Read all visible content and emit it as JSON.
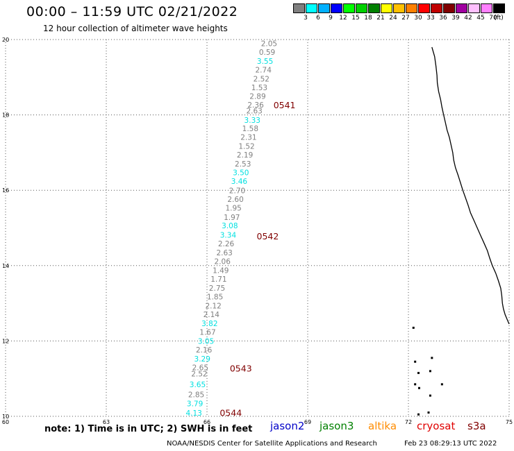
{
  "header": {
    "title": "00:00 – 11:59 UTC 02/21/2022",
    "subtitle": "12 hour collection of altimeter wave heights"
  },
  "legend": {
    "colors": [
      "#808080",
      "#00ffff",
      "#00b0ff",
      "#0000ff",
      "#00ff00",
      "#00d000",
      "#008000",
      "#ffff00",
      "#ffc000",
      "#ff8000",
      "#ff0000",
      "#c00000",
      "#800000",
      "#a000a0",
      "#ffc0ff",
      "#ff80ff",
      "#000000"
    ],
    "labels": [
      "3",
      "6",
      "9",
      "12",
      "15",
      "18",
      "21",
      "24",
      "27",
      "30",
      "33",
      "36",
      "39",
      "42",
      "45",
      "70",
      "(ft)"
    ]
  },
  "chart_data": {
    "type": "scatter",
    "title": "12 hour collection of altimeter wave heights",
    "xlabel": "",
    "ylabel": "",
    "xlim": [
      60,
      75
    ],
    "ylim": [
      10,
      20
    ],
    "x_ticks": [
      "60",
      "63",
      "66",
      "69",
      "72",
      "75"
    ],
    "y_ticks": [
      "10",
      "12",
      "14",
      "16",
      "18",
      "20"
    ],
    "grid": true,
    "series": [
      {
        "name": "jason2",
        "color": "#808080",
        "points": [
          {
            "lat": 19.9,
            "lon": 67.85,
            "swh": "2.05",
            "color": "#808080"
          },
          {
            "lat": 19.67,
            "lon": 67.79,
            "swh": "0.59",
            "color": "#808080"
          },
          {
            "lat": 19.43,
            "lon": 67.73,
            "swh": "3.55",
            "color": "#00e0e0"
          },
          {
            "lat": 19.2,
            "lon": 67.68,
            "swh": "2.74",
            "color": "#808080"
          },
          {
            "lat": 18.96,
            "lon": 67.62,
            "swh": "2.52",
            "color": "#808080"
          },
          {
            "lat": 18.73,
            "lon": 67.56,
            "swh": "1.53",
            "color": "#808080"
          },
          {
            "lat": 18.5,
            "lon": 67.51,
            "swh": "2.89",
            "color": "#808080"
          },
          {
            "lat": 18.27,
            "lon": 67.45,
            "swh": "2.36",
            "color": "#808080"
          },
          {
            "lat": 18.11,
            "lon": 67.41,
            "swh": "2.63",
            "color": "#808080"
          },
          {
            "lat": 17.86,
            "lon": 67.35,
            "swh": "3.33",
            "color": "#00e0e0"
          },
          {
            "lat": 17.64,
            "lon": 67.29,
            "swh": "1.58",
            "color": "#808080"
          },
          {
            "lat": 17.41,
            "lon": 67.24,
            "swh": "2.31",
            "color": "#808080"
          },
          {
            "lat": 17.17,
            "lon": 67.18,
            "swh": "1.52",
            "color": "#808080"
          },
          {
            "lat": 16.94,
            "lon": 67.13,
            "swh": "2.19",
            "color": "#808080"
          },
          {
            "lat": 16.7,
            "lon": 67.07,
            "swh": "2.53",
            "color": "#808080"
          },
          {
            "lat": 16.47,
            "lon": 67.01,
            "swh": "3.50",
            "color": "#00e0e0"
          },
          {
            "lat": 16.24,
            "lon": 66.96,
            "swh": "3.46",
            "color": "#00e0e0"
          },
          {
            "lat": 15.99,
            "lon": 66.9,
            "swh": "2.70",
            "color": "#808080"
          },
          {
            "lat": 15.76,
            "lon": 66.85,
            "swh": "2.60",
            "color": "#808080"
          },
          {
            "lat": 15.53,
            "lon": 66.79,
            "swh": "1.95",
            "color": "#808080"
          },
          {
            "lat": 15.29,
            "lon": 66.74,
            "swh": "1.97",
            "color": "#808080"
          },
          {
            "lat": 15.06,
            "lon": 66.68,
            "swh": "3.08",
            "color": "#00e0e0"
          },
          {
            "lat": 14.82,
            "lon": 66.63,
            "swh": "3.34",
            "color": "#00e0e0"
          },
          {
            "lat": 14.59,
            "lon": 66.57,
            "swh": "2.26",
            "color": "#808080"
          },
          {
            "lat": 14.35,
            "lon": 66.52,
            "swh": "2.63",
            "color": "#808080"
          },
          {
            "lat": 14.12,
            "lon": 66.46,
            "swh": "2.06",
            "color": "#808080"
          },
          {
            "lat": 13.88,
            "lon": 66.41,
            "swh": "1.49",
            "color": "#808080"
          },
          {
            "lat": 13.65,
            "lon": 66.35,
            "swh": "1.71",
            "color": "#808080"
          },
          {
            "lat": 13.41,
            "lon": 66.3,
            "swh": "2.75",
            "color": "#808080"
          },
          {
            "lat": 13.18,
            "lon": 66.24,
            "swh": "1.85",
            "color": "#808080"
          },
          {
            "lat": 12.94,
            "lon": 66.19,
            "swh": "2.12",
            "color": "#808080"
          },
          {
            "lat": 12.71,
            "lon": 66.13,
            "swh": "2.14",
            "color": "#808080"
          },
          {
            "lat": 12.47,
            "lon": 66.08,
            "swh": "3.82",
            "color": "#00e0e0"
          },
          {
            "lat": 12.24,
            "lon": 66.02,
            "swh": "1.67",
            "color": "#808080"
          },
          {
            "lat": 12.0,
            "lon": 65.97,
            "swh": "3.05",
            "color": "#00e0e0"
          },
          {
            "lat": 11.77,
            "lon": 65.91,
            "swh": "2.16",
            "color": "#808080"
          },
          {
            "lat": 11.53,
            "lon": 65.86,
            "swh": "3.29",
            "color": "#00e0e0"
          },
          {
            "lat": 11.3,
            "lon": 65.8,
            "swh": "2.65",
            "color": "#808080"
          },
          {
            "lat": 11.13,
            "lon": 65.77,
            "swh": "2.52",
            "color": "#808080"
          },
          {
            "lat": 10.85,
            "lon": 65.72,
            "swh": "3.65",
            "color": "#00e0e0"
          },
          {
            "lat": 10.58,
            "lon": 65.68,
            "swh": "2.85",
            "color": "#808080"
          },
          {
            "lat": 10.34,
            "lon": 65.64,
            "swh": "3.79",
            "color": "#00e0e0"
          },
          {
            "lat": 10.09,
            "lon": 65.61,
            "swh": "4.13",
            "color": "#00e0e0"
          }
        ]
      }
    ],
    "time_annotations": [
      {
        "lat": 18.27,
        "lon": 67.98,
        "label": "0541",
        "color": "#800000"
      },
      {
        "lat": 14.79,
        "lon": 67.48,
        "label": "0542",
        "color": "#800000"
      },
      {
        "lat": 11.28,
        "lon": 66.68,
        "label": "0543",
        "color": "#800000"
      },
      {
        "lat": 10.1,
        "lon": 66.38,
        "label": "0544",
        "color": "#800000"
      }
    ],
    "coastline": {
      "main": [
        [
          72.7,
          19.8
        ],
        [
          72.78,
          19.55
        ],
        [
          72.82,
          19.3
        ],
        [
          72.85,
          19.05
        ],
        [
          72.86,
          18.85
        ],
        [
          72.9,
          18.62
        ],
        [
          72.96,
          18.4
        ],
        [
          73.0,
          18.2
        ],
        [
          73.05,
          18.0
        ],
        [
          73.1,
          17.8
        ],
        [
          73.15,
          17.6
        ],
        [
          73.22,
          17.4
        ],
        [
          73.27,
          17.2
        ],
        [
          73.32,
          17.0
        ],
        [
          73.35,
          16.8
        ],
        [
          73.4,
          16.6
        ],
        [
          73.48,
          16.4
        ],
        [
          73.55,
          16.2
        ],
        [
          73.62,
          16.0
        ],
        [
          73.7,
          15.8
        ],
        [
          73.78,
          15.6
        ],
        [
          73.85,
          15.4
        ],
        [
          73.95,
          15.2
        ],
        [
          74.05,
          15.0
        ],
        [
          74.15,
          14.8
        ],
        [
          74.25,
          14.6
        ],
        [
          74.35,
          14.4
        ],
        [
          74.42,
          14.2
        ],
        [
          74.5,
          14.0
        ],
        [
          74.6,
          13.8
        ],
        [
          74.68,
          13.6
        ],
        [
          74.75,
          13.4
        ],
        [
          74.78,
          13.2
        ],
        [
          74.8,
          13.0
        ],
        [
          74.83,
          12.85
        ],
        [
          74.88,
          12.7
        ],
        [
          74.95,
          12.55
        ],
        [
          75.0,
          12.45
        ]
      ],
      "islands": [
        [
          72.15,
          12.35
        ],
        [
          72.2,
          11.45
        ],
        [
          72.7,
          11.55
        ],
        [
          72.3,
          11.15
        ],
        [
          72.65,
          11.2
        ],
        [
          72.2,
          10.85
        ],
        [
          72.32,
          10.75
        ],
        [
          72.65,
          10.55
        ],
        [
          72.6,
          10.1
        ],
        [
          72.3,
          10.05
        ],
        [
          73.0,
          10.85
        ]
      ]
    }
  },
  "footer": {
    "note": "note: 1) Time is in UTC; 2) SWH is in feet",
    "satellites": [
      {
        "name": "jason2",
        "color": "#0000c8"
      },
      {
        "name": "jason3",
        "color": "#008000"
      },
      {
        "name": "altika",
        "color": "#ff8c00"
      },
      {
        "name": "cryosat",
        "color": "#e00000"
      },
      {
        "name": "s3a",
        "color": "#800000"
      }
    ],
    "credit": "NOAA/NESDIS Center for Satellite Applications and Research",
    "timestamp": "Feb 23 08:29:13 UTC 2022"
  }
}
